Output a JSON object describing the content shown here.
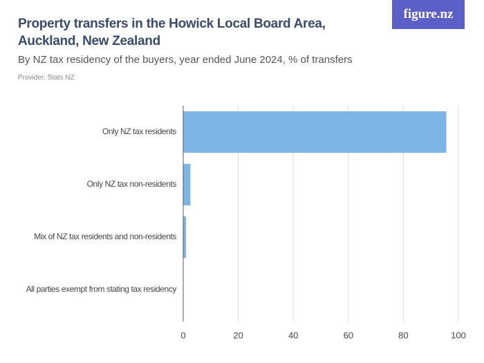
{
  "logo": "figure.nz",
  "chart_data": {
    "type": "hbar",
    "title": "Property transfers in the Howick Local Board Area, Auckland, New Zealand",
    "subtitle": "By NZ tax residency of the buyers, year ended June 2024, % of transfers",
    "provider": "Provider: Stats NZ",
    "categories": [
      "Only NZ tax residents",
      "Only NZ tax non-residents",
      "Mix of NZ tax residents and non-residents",
      "All parties exempt from stating tax residency"
    ],
    "values": [
      95.6,
      2.6,
      1.0,
      0.1
    ],
    "color": "#7cb5e6",
    "xlim": [
      0,
      100
    ],
    "xticks": [
      0,
      20,
      40,
      60,
      80,
      100
    ],
    "grid": true
  }
}
